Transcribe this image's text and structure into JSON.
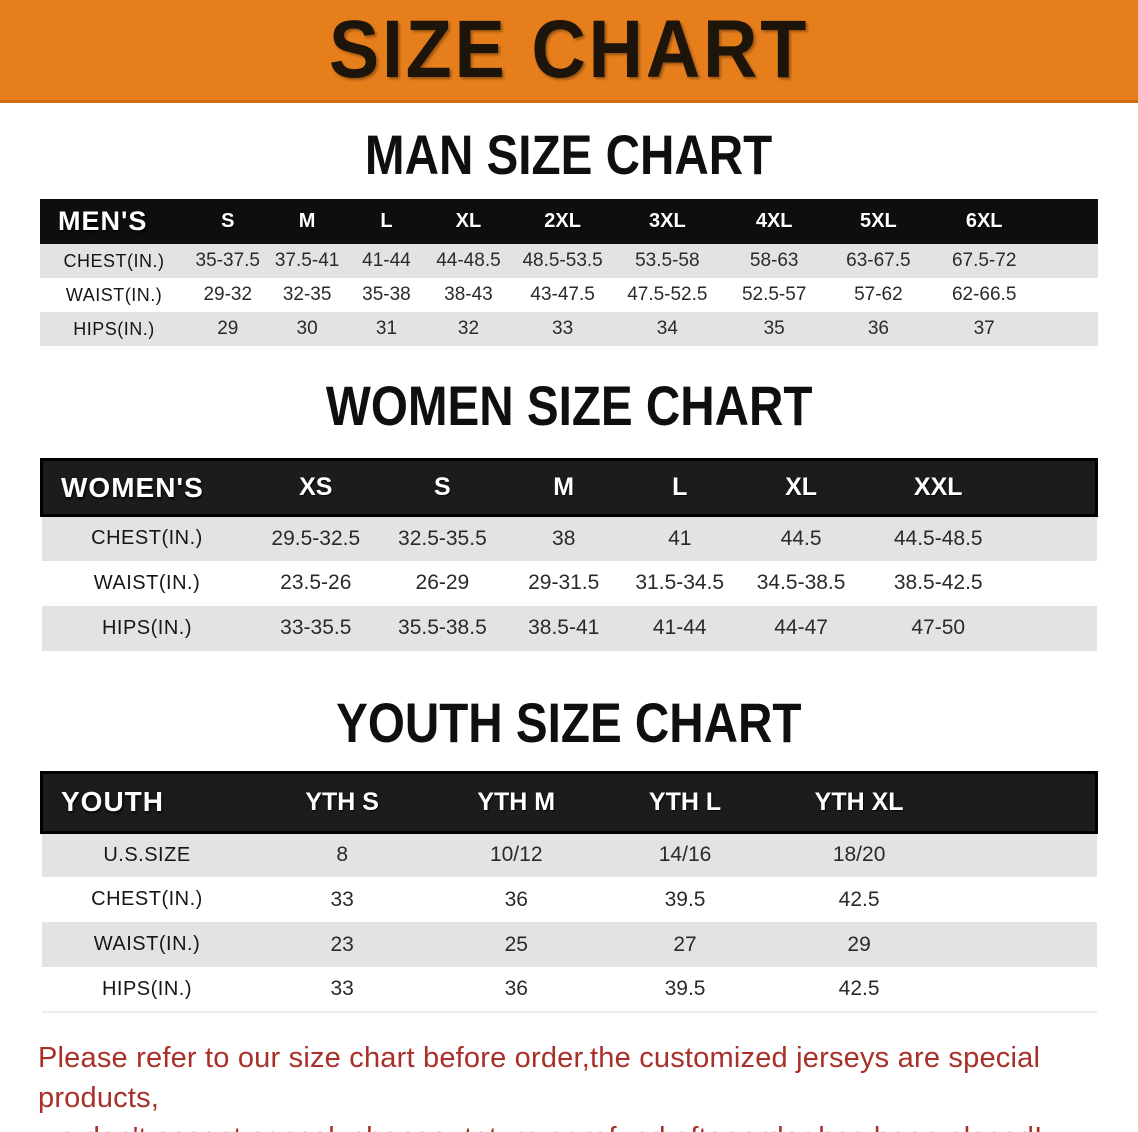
{
  "banner": {
    "title": "SIZE CHART"
  },
  "colors": {
    "banner_orange": "#E67E1C",
    "header_black": "#0e0e0e",
    "row_stripe_gray": "#E3E3E3",
    "footer_red": "#A93028"
  },
  "sections": [
    {
      "heading": "MAN SIZE CHART",
      "table": {
        "label": "MEN'S",
        "columns": [
          "S",
          "M",
          "L",
          "XL",
          "2XL",
          "3XL",
          "4XL",
          "5XL",
          "6XL"
        ],
        "rows": [
          {
            "label": "CHEST(IN.)",
            "values": [
              "35-37.5",
              "37.5-41",
              "41-44",
              "44-48.5",
              "48.5-53.5",
              "53.5-58",
              "58-63",
              "63-67.5",
              "67.5-72"
            ]
          },
          {
            "label": "WAIST(IN.)",
            "values": [
              "29-32",
              "32-35",
              "35-38",
              "38-43",
              "43-47.5",
              "47.5-52.5",
              "52.5-57",
              "57-62",
              "62-66.5"
            ]
          },
          {
            "label": "HIPS(IN.)",
            "values": [
              "29",
              "30",
              "31",
              "32",
              "33",
              "34",
              "35",
              "36",
              "37"
            ]
          }
        ]
      }
    },
    {
      "heading": "WOMEN SIZE CHART",
      "table": {
        "label": "WOMEN'S",
        "columns": [
          "XS",
          "S",
          "M",
          "L",
          "XL",
          "XXL"
        ],
        "rows": [
          {
            "label": "CHEST(IN.)",
            "values": [
              "29.5-32.5",
              "32.5-35.5",
              "38",
              "41",
              "44.5",
              "44.5-48.5"
            ]
          },
          {
            "label": "WAIST(IN.)",
            "values": [
              "23.5-26",
              "26-29",
              "29-31.5",
              "31.5-34.5",
              "34.5-38.5",
              "38.5-42.5"
            ]
          },
          {
            "label": "HIPS(IN.)",
            "values": [
              "33-35.5",
              "35.5-38.5",
              "38.5-41",
              "41-44",
              "44-47",
              "47-50"
            ]
          }
        ]
      }
    },
    {
      "heading": "YOUTH SIZE CHART",
      "table": {
        "label": "YOUTH",
        "columns": [
          "YTH S",
          "YTH M",
          "YTH L",
          "YTH XL"
        ],
        "rows": [
          {
            "label": "U.S.SIZE",
            "values": [
              "8",
              "10/12",
              "14/16",
              "18/20"
            ]
          },
          {
            "label": "CHEST(IN.)",
            "values": [
              "33",
              "36",
              "39.5",
              "42.5"
            ]
          },
          {
            "label": "WAIST(IN.)",
            "values": [
              "23",
              "25",
              "27",
              "29"
            ]
          },
          {
            "label": "HIPS(IN.)",
            "values": [
              "33",
              "36",
              "39.5",
              "42.5"
            ]
          }
        ]
      }
    }
  ],
  "footer": {
    "lines": [
      "Please refer to our size chart before order,the customized jerseys are special products,",
      "we don't accept cancel, change, teturn or refund after order has been placed!"
    ]
  }
}
